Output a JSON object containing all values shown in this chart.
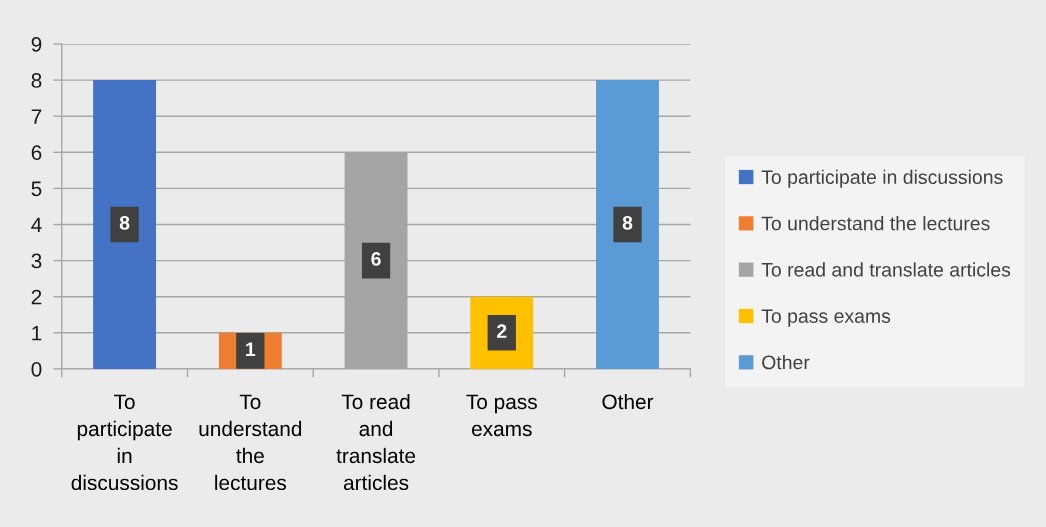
{
  "chart_data": {
    "type": "bar",
    "categories": [
      "To participate in discussions",
      "To understand the lectures",
      "To read and translate articles",
      "To pass exams",
      "Other"
    ],
    "series": [
      {
        "name": "To participate in discussions",
        "color": "#4472c4",
        "values": [
          8,
          null,
          null,
          null,
          null
        ]
      },
      {
        "name": "To understand the lectures",
        "color": "#ed7d31",
        "values": [
          null,
          1,
          null,
          null,
          null
        ]
      },
      {
        "name": "To read and translate articles",
        "color": "#a5a5a5",
        "values": [
          null,
          null,
          6,
          null,
          null
        ]
      },
      {
        "name": "To pass exams",
        "color": "#ffc000",
        "values": [
          null,
          null,
          null,
          2,
          null
        ]
      },
      {
        "name": "Other",
        "color": "#5b9bd5",
        "values": [
          null,
          null,
          null,
          null,
          8
        ]
      }
    ],
    "stacked": true,
    "ylim": [
      0,
      9
    ],
    "yticks": [
      0,
      1,
      2,
      3,
      4,
      5,
      6,
      7,
      8,
      9
    ],
    "grid": "y",
    "legend": "right",
    "data_labels": true
  }
}
